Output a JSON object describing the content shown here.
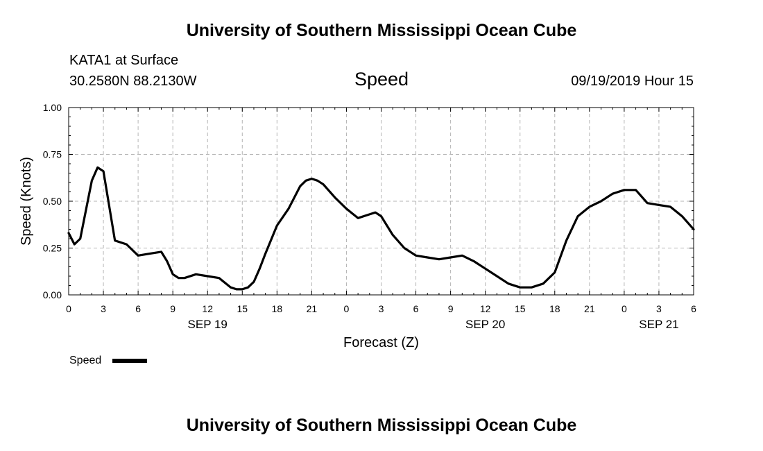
{
  "header": {
    "title": "University of Southern Mississippi Ocean Cube",
    "station": "KATA1 at Surface",
    "coords": "30.2580N 88.2130W",
    "variable": "Speed",
    "datetime": "09/19/2019 Hour 15"
  },
  "footer": {
    "title": "University of Southern Mississippi Ocean Cube"
  },
  "chart_data": {
    "type": "line",
    "ylabel": "Speed (Knots)",
    "xlabel": "Forecast (Z)",
    "ylim": [
      0,
      1
    ],
    "xlim": [
      0,
      54
    ],
    "y_ticks": [
      0,
      0.25,
      0.5,
      0.75,
      1.0
    ],
    "y_tick_labels": [
      "0.00",
      "0.25",
      "0.50",
      "0.75",
      "1.00"
    ],
    "x_ticks": [
      0,
      3,
      6,
      9,
      12,
      15,
      18,
      21,
      24,
      27,
      30,
      33,
      36,
      39,
      42,
      45,
      48,
      51,
      54
    ],
    "x_tick_labels": [
      "0",
      "3",
      "6",
      "9",
      "12",
      "15",
      "18",
      "21",
      "0",
      "3",
      "6",
      "9",
      "12",
      "15",
      "18",
      "21",
      "0",
      "3",
      "6"
    ],
    "date_labels": [
      {
        "x": 12,
        "label": "SEP 19"
      },
      {
        "x": 36,
        "label": "SEP 20"
      },
      {
        "x": 51,
        "label": "SEP 21"
      }
    ],
    "grid": true,
    "legend": "bottom-left",
    "series": [
      {
        "name": "Speed",
        "color": "#000000",
        "x": [
          0,
          0.5,
          1,
          2,
          2.5,
          3,
          4,
          5,
          6,
          7,
          8,
          8.5,
          9,
          9.5,
          10,
          11,
          12,
          13,
          14,
          14.5,
          15,
          15.5,
          16,
          16.5,
          17,
          18,
          19,
          20,
          20.5,
          21,
          21.5,
          22,
          23,
          24,
          25,
          26,
          26.5,
          27,
          28,
          29,
          30,
          31,
          32,
          33,
          34,
          35,
          36,
          37,
          38,
          39,
          40,
          41,
          42,
          43,
          44,
          45,
          46,
          47,
          48,
          49,
          50,
          51,
          52,
          53,
          54
        ],
        "y": [
          0.33,
          0.27,
          0.3,
          0.61,
          0.68,
          0.66,
          0.29,
          0.27,
          0.21,
          0.22,
          0.23,
          0.18,
          0.11,
          0.09,
          0.09,
          0.11,
          0.1,
          0.09,
          0.04,
          0.03,
          0.03,
          0.04,
          0.07,
          0.14,
          0.22,
          0.37,
          0.46,
          0.58,
          0.61,
          0.62,
          0.61,
          0.59,
          0.52,
          0.46,
          0.41,
          0.43,
          0.44,
          0.42,
          0.32,
          0.25,
          0.21,
          0.2,
          0.19,
          0.2,
          0.21,
          0.18,
          0.14,
          0.1,
          0.06,
          0.04,
          0.04,
          0.06,
          0.12,
          0.29,
          0.42,
          0.47,
          0.5,
          0.54,
          0.56,
          0.56,
          0.49,
          0.48,
          0.47,
          0.42,
          0.35
        ]
      }
    ]
  }
}
